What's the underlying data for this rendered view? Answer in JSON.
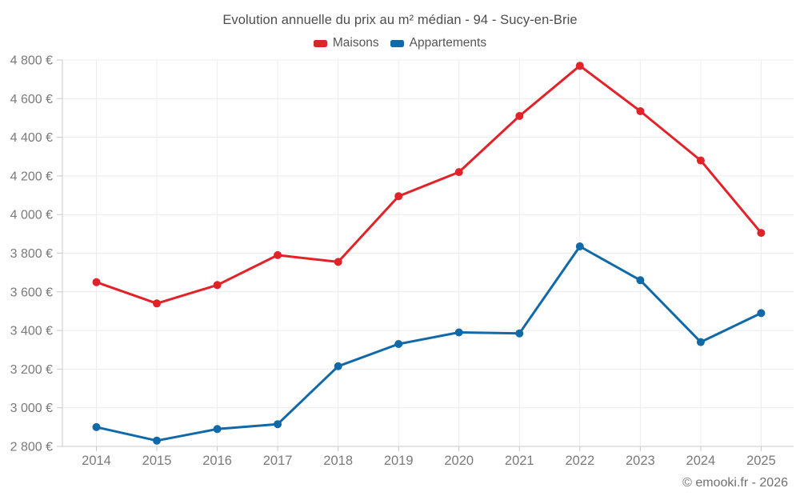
{
  "title": "Evolution annuelle du prix au m² médian - 94 - Sucy-en-Brie",
  "footer": "© emooki.fr - 2026",
  "colors": {
    "maisons": "#e12229",
    "appartements": "#1169a8",
    "gridline": "#ececec",
    "axis": "#c9c9c9",
    "axis_label": "#7a7a7a",
    "title_text": "#4d4d4d",
    "legend_text": "#555555",
    "footer_text": "#707070",
    "background": "#ffffff"
  },
  "chart_data": {
    "type": "line",
    "title": "Evolution annuelle du prix au m² médian - 94 - Sucy-en-Brie",
    "categories": [
      "2014",
      "2015",
      "2016",
      "2017",
      "2018",
      "2019",
      "2020",
      "2021",
      "2022",
      "2023",
      "2024",
      "2025"
    ],
    "series": [
      {
        "name": "Maisons",
        "color": "#e12229",
        "values": [
          3650,
          3540,
          3635,
          3790,
          3755,
          4095,
          4220,
          4510,
          4770,
          4535,
          4280,
          3905
        ]
      },
      {
        "name": "Appartements",
        "color": "#1169a8",
        "values": [
          2900,
          2830,
          2890,
          2915,
          3215,
          3330,
          3390,
          3385,
          3835,
          3660,
          3340,
          3490
        ]
      }
    ],
    "xlabel": "",
    "ylabel": "",
    "ylim": [
      2800,
      4800
    ],
    "ytick_step": 200,
    "ytick_values": [
      2800,
      3000,
      3200,
      3400,
      3600,
      3800,
      4000,
      4200,
      4400,
      4600,
      4800
    ],
    "ytick_labels": [
      "2 800 €",
      "3 000 €",
      "3 200 €",
      "3 400 €",
      "3 600 €",
      "3 800 €",
      "4 000 €",
      "4 200 €",
      "4 400 €",
      "4 600 €",
      "4 800 €"
    ],
    "grid": true,
    "legend_position": "top"
  }
}
